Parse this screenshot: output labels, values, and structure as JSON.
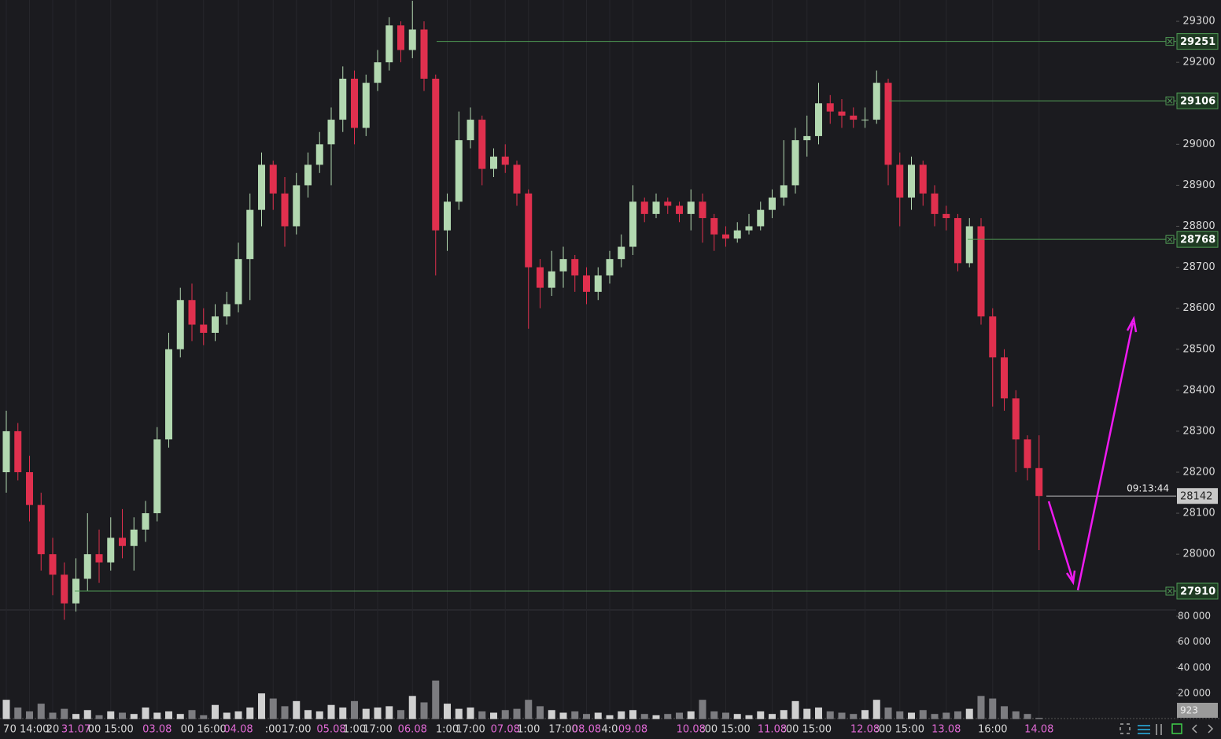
{
  "chart_data": [
    {
      "type": "candlestick",
      "categories": [
        "7",
        null,
        "0 14:00",
        null,
        "20",
        null,
        "31.07",
        null,
        null,
        "00 15:00",
        null,
        null,
        null,
        "03.08",
        null,
        null,
        null,
        "00 16:00",
        null,
        null,
        "04.08",
        null,
        null,
        ":00",
        null,
        "17:00",
        null,
        null,
        "05.08",
        null,
        "1:00",
        null,
        "17:00",
        null,
        null,
        "06.08",
        null,
        null,
        "1:00",
        null,
        "17:00",
        null,
        null,
        "07.08",
        null,
        "1:00",
        null,
        null,
        "17:00",
        null,
        "08.08",
        null,
        "4:0",
        null,
        "09.08",
        null,
        null,
        null,
        null,
        "10.08",
        null,
        null,
        ":00 15:00",
        null,
        null,
        null,
        "11.08",
        null,
        null,
        ":00 15:00",
        null,
        null,
        null,
        null,
        "12.08",
        null,
        null,
        ":00 15:00",
        null,
        null,
        null,
        "13.08",
        null,
        null,
        null,
        "16:00",
        null,
        null,
        null,
        "14.08"
      ],
      "ohlc": [
        [
          28200,
          28350,
          28150,
          28300
        ],
        [
          28300,
          28320,
          28180,
          28200
        ],
        [
          28200,
          28240,
          28080,
          28120
        ],
        [
          28120,
          28150,
          27960,
          28000
        ],
        [
          28000,
          28040,
          27900,
          27950
        ],
        [
          27950,
          27980,
          27840,
          27880
        ],
        [
          27880,
          27990,
          27860,
          27940
        ],
        [
          27940,
          28100,
          27910,
          28000
        ],
        [
          28000,
          28060,
          27930,
          27980
        ],
        [
          27980,
          28090,
          27960,
          28040
        ],
        [
          28040,
          28110,
          27990,
          28020
        ],
        [
          28020,
          28090,
          27960,
          28060
        ],
        [
          28060,
          28130,
          28030,
          28100
        ],
        [
          28100,
          28310,
          28080,
          28280
        ],
        [
          28280,
          28540,
          28260,
          28500
        ],
        [
          28500,
          28650,
          28480,
          28620
        ],
        [
          28620,
          28660,
          28520,
          28560
        ],
        [
          28560,
          28600,
          28510,
          28540
        ],
        [
          28540,
          28610,
          28520,
          28580
        ],
        [
          28580,
          28640,
          28560,
          28610
        ],
        [
          28610,
          28760,
          28590,
          28720
        ],
        [
          28720,
          28880,
          28620,
          28840
        ],
        [
          28840,
          28980,
          28800,
          28950
        ],
        [
          28950,
          28960,
          28840,
          28880
        ],
        [
          28880,
          28920,
          28750,
          28800
        ],
        [
          28800,
          28930,
          28780,
          28900
        ],
        [
          28900,
          28980,
          28870,
          28950
        ],
        [
          28950,
          29030,
          28930,
          29000
        ],
        [
          29000,
          29090,
          28900,
          29060
        ],
        [
          29060,
          29190,
          29030,
          29160
        ],
        [
          29160,
          29180,
          29000,
          29040
        ],
        [
          29040,
          29170,
          29020,
          29150
        ],
        [
          29150,
          29230,
          29130,
          29200
        ],
        [
          29200,
          29310,
          29180,
          29290
        ],
        [
          29290,
          29300,
          29200,
          29230
        ],
        [
          29230,
          29350,
          29210,
          29280
        ],
        [
          29280,
          29300,
          29130,
          29160
        ],
        [
          29160,
          29170,
          28680,
          28790
        ],
        [
          28790,
          28880,
          28740,
          28860
        ],
        [
          28860,
          29080,
          28840,
          29010
        ],
        [
          29010,
          29090,
          28990,
          29060
        ],
        [
          29060,
          29070,
          28900,
          28940
        ],
        [
          28940,
          28990,
          28920,
          28970
        ],
        [
          28970,
          29000,
          28930,
          28950
        ],
        [
          28950,
          28960,
          28850,
          28880
        ],
        [
          28880,
          28890,
          28550,
          28700
        ],
        [
          28700,
          28720,
          28600,
          28650
        ],
        [
          28650,
          28740,
          28630,
          28690
        ],
        [
          28690,
          28750,
          28650,
          28720
        ],
        [
          28720,
          28730,
          28640,
          28680
        ],
        [
          28680,
          28700,
          28610,
          28640
        ],
        [
          28640,
          28700,
          28620,
          28680
        ],
        [
          28680,
          28740,
          28660,
          28720
        ],
        [
          28720,
          28780,
          28700,
          28750
        ],
        [
          28750,
          28900,
          28730,
          28860
        ],
        [
          28860,
          28870,
          28810,
          28830
        ],
        [
          28830,
          28880,
          28820,
          28860
        ],
        [
          28860,
          28870,
          28830,
          28850
        ],
        [
          28850,
          28860,
          28810,
          28830
        ],
        [
          28830,
          28890,
          28790,
          28860
        ],
        [
          28860,
          28880,
          28760,
          28820
        ],
        [
          28820,
          28830,
          28740,
          28780
        ],
        [
          28780,
          28800,
          28750,
          28770
        ],
        [
          28770,
          28810,
          28760,
          28790
        ],
        [
          28790,
          28830,
          28780,
          28800
        ],
        [
          28800,
          28860,
          28790,
          28840
        ],
        [
          28840,
          28890,
          28820,
          28870
        ],
        [
          28870,
          29010,
          28850,
          28900
        ],
        [
          28900,
          29040,
          28880,
          29010
        ],
        [
          29010,
          29070,
          28970,
          29020
        ],
        [
          29020,
          29150,
          29000,
          29100
        ],
        [
          29100,
          29120,
          29050,
          29080
        ],
        [
          29080,
          29110,
          29040,
          29070
        ],
        [
          29070,
          29090,
          29040,
          29060
        ],
        [
          29060,
          29090,
          29040,
          29060
        ],
        [
          29060,
          29180,
          29050,
          29150
        ],
        [
          29150,
          29160,
          28900,
          28950
        ],
        [
          28950,
          28980,
          28800,
          28870
        ],
        [
          28870,
          28970,
          28840,
          28950
        ],
        [
          28950,
          28960,
          28850,
          28880
        ],
        [
          28880,
          28900,
          28800,
          28830
        ],
        [
          28830,
          28850,
          28790,
          28820
        ],
        [
          28820,
          28830,
          28690,
          28710
        ],
        [
          28710,
          28820,
          28700,
          28800
        ],
        [
          28800,
          28820,
          28560,
          28580
        ],
        [
          28580,
          28600,
          28360,
          28480
        ],
        [
          28480,
          28500,
          28350,
          28380
        ],
        [
          28380,
          28400,
          28200,
          28280
        ],
        [
          28280,
          28290,
          28180,
          28210
        ],
        [
          28210,
          28290,
          28010,
          28142
        ]
      ],
      "up_color": "#b2d8b0",
      "down_color": "#e0304e",
      "ylim": [
        27864,
        29352
      ],
      "yticks": [
        28000,
        28100,
        28200,
        28300,
        28400,
        28500,
        28600,
        28700,
        28800,
        28900,
        29000,
        29100,
        29200,
        29300
      ],
      "levels": [
        29251,
        29106,
        28768,
        27910
      ],
      "level_color": "#4f9a54",
      "last_price": 28142,
      "countdown": "09:13:44",
      "grid": "x"
    },
    {
      "type": "bar",
      "values": [
        15000,
        9000,
        6000,
        12000,
        5000,
        8000,
        4000,
        7000,
        3000,
        6000,
        5000,
        4000,
        9000,
        5000,
        6000,
        4000,
        7000,
        3000,
        11000,
        5000,
        6000,
        9000,
        20000,
        16000,
        10000,
        14000,
        7000,
        6000,
        11000,
        9000,
        14000,
        8000,
        9000,
        10000,
        7000,
        18000,
        13000,
        30000,
        12000,
        8000,
        9000,
        6000,
        5000,
        7000,
        8000,
        15000,
        10000,
        7000,
        5000,
        6000,
        4000,
        5000,
        3000,
        6000,
        7000,
        4000,
        3000,
        4000,
        5000,
        6000,
        15000,
        6000,
        5000,
        4000,
        3000,
        6000,
        4000,
        7000,
        14000,
        8000,
        9000,
        6000,
        5000,
        4000,
        7000,
        15000,
        9000,
        6000,
        5000,
        7000,
        4000,
        5000,
        6000,
        8000,
        18000,
        16000,
        10000,
        6000,
        4000,
        923
      ],
      "up_color": "#d0d0d0",
      "down_color": "#7c7c80",
      "ylim": [
        0,
        84900
      ],
      "yticks": [
        {
          "value": 20000,
          "label": "20 000"
        },
        {
          "value": 40000,
          "label": "40 000"
        },
        {
          "value": 60000,
          "label": "60 000"
        },
        {
          "value": 80000,
          "label": "80 000"
        }
      ]
    }
  ]
}
